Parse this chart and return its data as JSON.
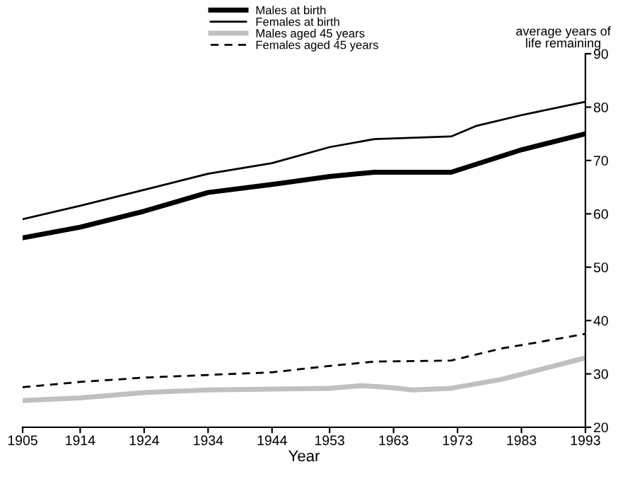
{
  "chart_data": {
    "type": "line",
    "xlabel": "Year",
    "ylabel": "average years of\nlife remaining",
    "xlim": [
      1905,
      1993
    ],
    "xticks": [
      1905,
      1914,
      1924,
      1934,
      1944,
      1953,
      1963,
      1973,
      1983,
      1993
    ],
    "ylim": [
      20,
      90
    ],
    "yticks": [
      20,
      30,
      40,
      50,
      60,
      70,
      80,
      90
    ],
    "grid": false,
    "legend": "top left",
    "series": [
      {
        "name": "Males at birth",
        "color": "#000000",
        "line_style": "solid",
        "x": [
          1905,
          1914,
          1924,
          1934,
          1944,
          1953,
          1960,
          1972,
          1983,
          1993
        ],
        "values": [
          55.5,
          57.5,
          60.5,
          64,
          65.5,
          67,
          67.8,
          67.8,
          72,
          75
        ]
      },
      {
        "name": "Females at birth",
        "color": "#000000",
        "line_style": "solid",
        "x": [
          1905,
          1914,
          1924,
          1934,
          1944,
          1953,
          1960,
          1972,
          1976,
          1983,
          1993
        ],
        "values": [
          59,
          61.5,
          64.5,
          67.5,
          69.5,
          72.5,
          74,
          74.5,
          76.5,
          78.5,
          81
        ]
      },
      {
        "name": "Males aged 45 years",
        "color": "#c0c0c0",
        "line_style": "solid",
        "x": [
          1905,
          1914,
          1924,
          1934,
          1953,
          1958,
          1962,
          1966,
          1972,
          1980,
          1993
        ],
        "values": [
          25,
          25.5,
          26.5,
          27,
          27.3,
          27.8,
          27.5,
          27,
          27.3,
          29,
          33
        ]
      },
      {
        "name": "Females aged 45 years",
        "color": "#000000",
        "line_style": "dashed",
        "x": [
          1905,
          1914,
          1924,
          1934,
          1944,
          1953,
          1960,
          1972,
          1980,
          1985,
          1993
        ],
        "values": [
          27.5,
          28.5,
          29.3,
          29.8,
          30.3,
          31.5,
          32.3,
          32.5,
          34.8,
          35.8,
          37.5
        ]
      }
    ]
  }
}
